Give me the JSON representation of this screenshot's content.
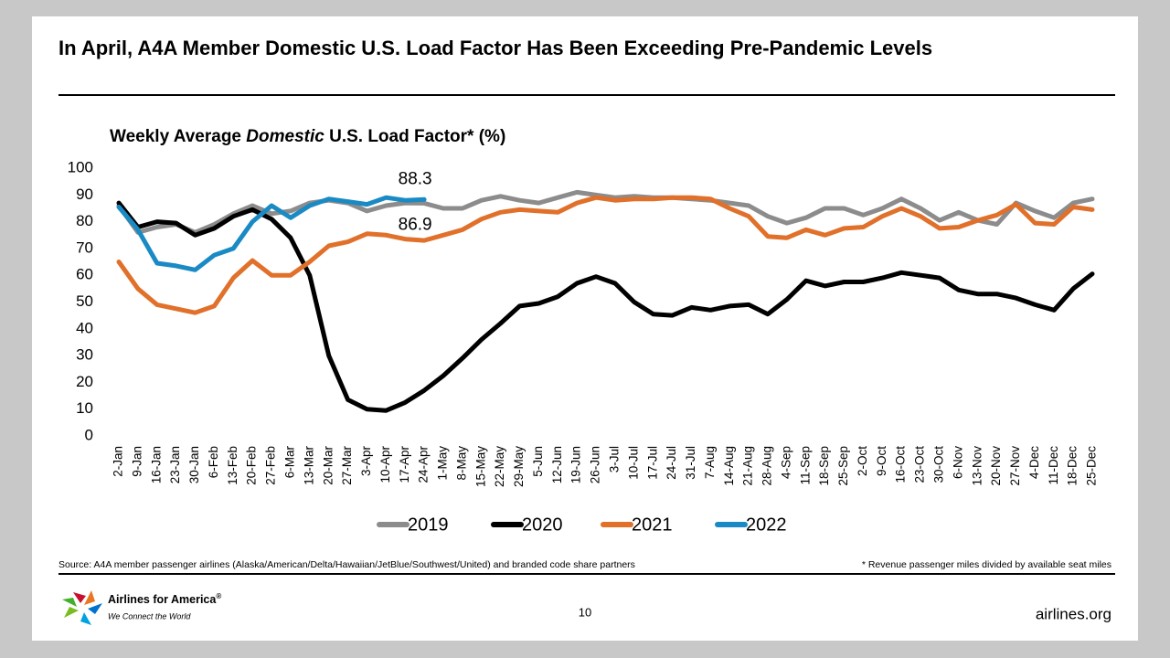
{
  "slide": {
    "title": "In April, A4A Member Domestic U.S. Load Factor Has Been Exceeding Pre-Pandemic Levels",
    "source": "Source: A4A member passenger airlines (Alaska/American/Delta/Hawaiian/JetBlue/Southwest/United) and branded code share partners",
    "footnote": "* Revenue passenger miles divided by available seat miles",
    "logo_name": "Airlines for America",
    "logo_mark": "®",
    "tagline": "We Connect the World",
    "page_number": "10",
    "website": "airlines.org"
  },
  "chart_data": {
    "type": "line",
    "subtitle": [
      "Weekly Average ",
      "Domestic",
      " U.S. Load Factor* (%)"
    ],
    "categories": [
      "2-Jan",
      "9-Jan",
      "16-Jan",
      "23-Jan",
      "30-Jan",
      "6-Feb",
      "13-Feb",
      "20-Feb",
      "27-Feb",
      "6-Mar",
      "13-Mar",
      "20-Mar",
      "27-Mar",
      "3-Apr",
      "10-Apr",
      "17-Apr",
      "24-Apr",
      "1-May",
      "8-May",
      "15-May",
      "22-May",
      "29-May",
      "5-Jun",
      "12-Jun",
      "19-Jun",
      "26-Jun",
      "3-Jul",
      "10-Jul",
      "17-Jul",
      "24-Jul",
      "31-Jul",
      "7-Aug",
      "14-Aug",
      "21-Aug",
      "28-Aug",
      "4-Sep",
      "11-Sep",
      "18-Sep",
      "25-Sep",
      "2-Oct",
      "9-Oct",
      "16-Oct",
      "23-Oct",
      "30-Oct",
      "6-Nov",
      "13-Nov",
      "20-Nov",
      "27-Nov",
      "4-Dec",
      "11-Dec",
      "18-Dec",
      "25-Dec"
    ],
    "series": [
      {
        "name": "2019",
        "color": "#8c8c8c",
        "values": [
          86,
          76,
          78,
          79,
          76,
          79,
          83,
          86,
          83,
          84,
          87,
          88,
          87,
          84,
          86,
          87,
          86.9,
          85,
          85,
          88,
          89.5,
          88,
          87,
          89,
          91,
          90,
          89,
          89.5,
          89,
          89,
          88.5,
          88,
          87,
          86,
          82,
          79.5,
          81.5,
          85,
          85,
          82.5,
          85,
          88.5,
          85,
          80.5,
          83.5,
          80.5,
          79,
          87,
          84,
          81.5,
          87,
          88.5
        ]
      },
      {
        "name": "2020",
        "color": "#000000",
        "values": [
          87,
          78,
          80,
          79.5,
          75,
          77.5,
          82,
          84.5,
          81,
          74,
          60,
          30,
          13.5,
          10,
          9.5,
          12.5,
          17,
          22.5,
          29,
          36,
          42,
          48.5,
          49.5,
          52,
          57,
          59.5,
          57,
          50,
          45.5,
          45,
          48,
          47,
          48.5,
          49,
          45.5,
          51,
          58,
          56,
          57.5,
          57.5,
          59,
          61,
          60,
          59,
          54.5,
          53,
          53,
          51.5,
          49,
          47,
          55,
          60.5
        ]
      },
      {
        "name": "2021",
        "color": "#e0702a",
        "values": [
          65,
          55,
          49,
          47.5,
          46,
          48.5,
          59,
          65.5,
          60,
          60,
          65,
          71,
          72.5,
          75.5,
          75,
          73.5,
          73,
          75,
          77,
          81,
          83.5,
          84.5,
          84,
          83.5,
          87,
          89,
          88,
          88.5,
          88.5,
          89,
          89,
          88.5,
          85,
          82,
          74.5,
          74,
          77,
          75,
          77.5,
          78,
          82,
          85,
          82,
          77.5,
          78,
          80.5,
          82.5,
          86.5,
          79.5,
          79,
          85.5,
          84.5
        ]
      },
      {
        "name": "2022",
        "color": "#1a8ac4",
        "values": [
          85.5,
          77,
          64.5,
          63.5,
          62,
          67.5,
          70,
          80,
          86,
          81.5,
          86,
          88.5,
          87.5,
          86.5,
          89,
          88,
          88.3,
          null,
          null,
          null,
          null,
          null,
          null,
          null,
          null,
          null,
          null,
          null,
          null,
          null,
          null,
          null,
          null,
          null,
          null,
          null,
          null,
          null,
          null,
          null,
          null,
          null,
          null,
          null,
          null,
          null,
          null,
          null,
          null,
          null,
          null,
          null
        ]
      }
    ],
    "labeled_points": [
      "series.3.values.16",
      "series.0.values.16"
    ],
    "ylim": [
      0,
      100
    ],
    "yticks": [
      0,
      10,
      20,
      30,
      40,
      50,
      60,
      70,
      80,
      90,
      100
    ],
    "grid": false,
    "legend": "bottom"
  }
}
